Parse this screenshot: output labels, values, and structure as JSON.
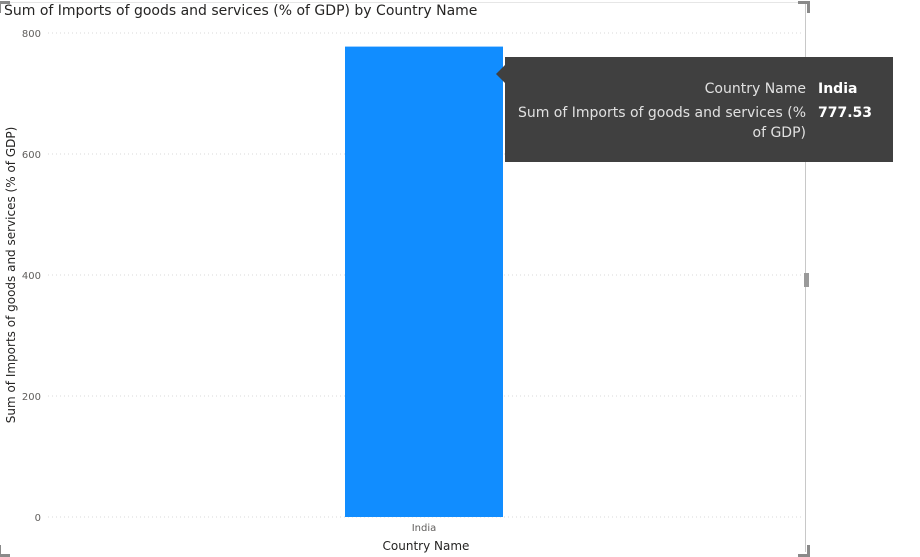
{
  "chart_data": {
    "type": "bar",
    "title": "Sum of Imports of goods and services (% of GDP) by Country Name",
    "xlabel": "Country Name",
    "ylabel": "Sum of Imports of goods and services (% of GDP)",
    "categories": [
      "India"
    ],
    "values": [
      777.53
    ],
    "ylim": [
      0,
      800
    ],
    "yticks": [
      0,
      200,
      400,
      600,
      800
    ],
    "grid": true,
    "bar_color": "#118DFF"
  },
  "tooltip": {
    "rows": [
      {
        "key": "Country Name",
        "value": "India"
      },
      {
        "key": "Sum of Imports of goods and services (% of GDP)",
        "value": "777.53"
      }
    ]
  }
}
